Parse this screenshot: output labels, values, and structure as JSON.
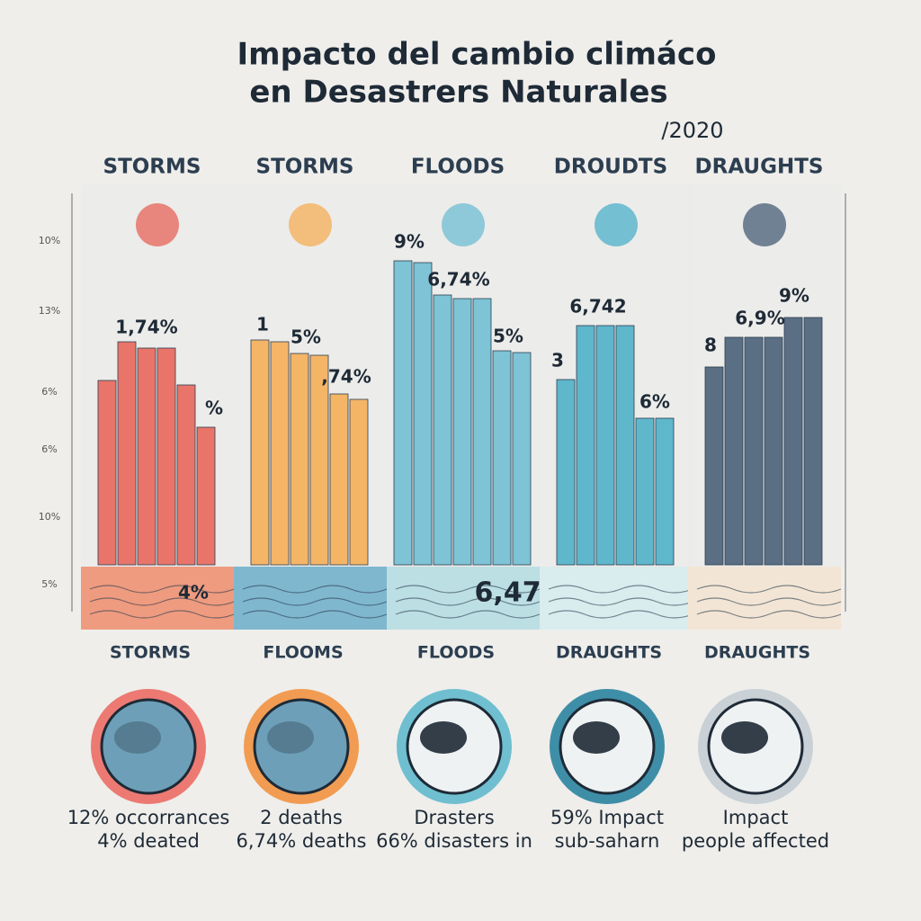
{
  "header": {
    "title_line1": "Impacto del  cambio climáco",
    "title_line2": "en Desastrers Naturales",
    "year": "/2020"
  },
  "axis_labels": [
    "10%",
    "13%",
    "6%",
    "6%",
    "10%",
    "5%"
  ],
  "panels": [
    {
      "top_label": "STORMS",
      "bar_labels": [
        "1,74%",
        "%"
      ],
      "ground_label": "4%",
      "bottom_label": "STORMS",
      "caption": [
        "12% occorrances",
        "4% deated"
      ]
    },
    {
      "top_label": "STORMS",
      "bar_labels": [
        "1",
        "5%",
        ",74%"
      ],
      "bottom_label": "FLOOMS",
      "caption": [
        "2 deaths",
        "6,74% deaths"
      ]
    },
    {
      "top_label": "FLOODS",
      "bar_labels": [
        "9%",
        "6,74%",
        "5%"
      ],
      "ground_label": "6,471",
      "bottom_label": "FLOODS",
      "caption": [
        "Drasters",
        "66% disasters in"
      ]
    },
    {
      "top_label": "DROUDTS",
      "bar_labels": [
        "6,742",
        "3",
        "6%"
      ],
      "bottom_label": "DRAUGHTS",
      "caption": [
        "59% Impact",
        "sub-saharn"
      ]
    },
    {
      "top_label": "DRAUGHTS",
      "bar_labels": [
        "9%",
        "6,9%",
        "8"
      ],
      "bottom_label": "DRAUGHTS",
      "caption": [
        "Impact",
        "people affected"
      ]
    }
  ]
}
